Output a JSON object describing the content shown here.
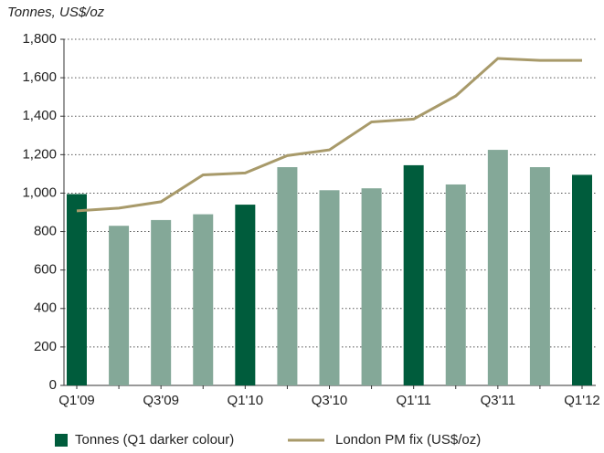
{
  "chart_data": {
    "type": "bar",
    "title": "Tonnes, US$/oz",
    "categories": [
      "Q1'09",
      null,
      "Q3'09",
      null,
      "Q1'10",
      null,
      "Q3'10",
      null,
      "Q1'11",
      null,
      "Q3'11",
      null,
      "Q1'12"
    ],
    "series": [
      {
        "name": "Tonnes (Q1 darker colour)",
        "type": "bar",
        "color": "#84a898",
        "colors": [
          "#005c3c",
          "#84a898",
          "#84a898",
          "#84a898",
          "#005c3c",
          "#84a898",
          "#84a898",
          "#84a898",
          "#005c3c",
          "#84a898",
          "#84a898",
          "#84a898",
          "#005c3c"
        ],
        "values": [
          995,
          830,
          860,
          890,
          940,
          1135,
          1015,
          1025,
          1145,
          1045,
          1225,
          1135,
          1095
        ]
      },
      {
        "name": "London PM fix (US$/oz)",
        "type": "line",
        "color": "#a89a6a",
        "values": [
          908,
          922,
          955,
          1095,
          1105,
          1195,
          1225,
          1370,
          1385,
          1505,
          1700,
          1690,
          1690
        ]
      }
    ],
    "ylim": [
      0,
      1800
    ],
    "yticks": [
      0,
      200,
      400,
      600,
      800,
      {
        "value": 1000,
        "label": "1,000"
      },
      {
        "value": 1200,
        "label": "1,200"
      },
      {
        "value": 1400,
        "label": "1,400"
      },
      {
        "value": 1600,
        "label": "1,600"
      },
      {
        "value": 1800,
        "label": "1,800"
      }
    ],
    "grid": true
  }
}
